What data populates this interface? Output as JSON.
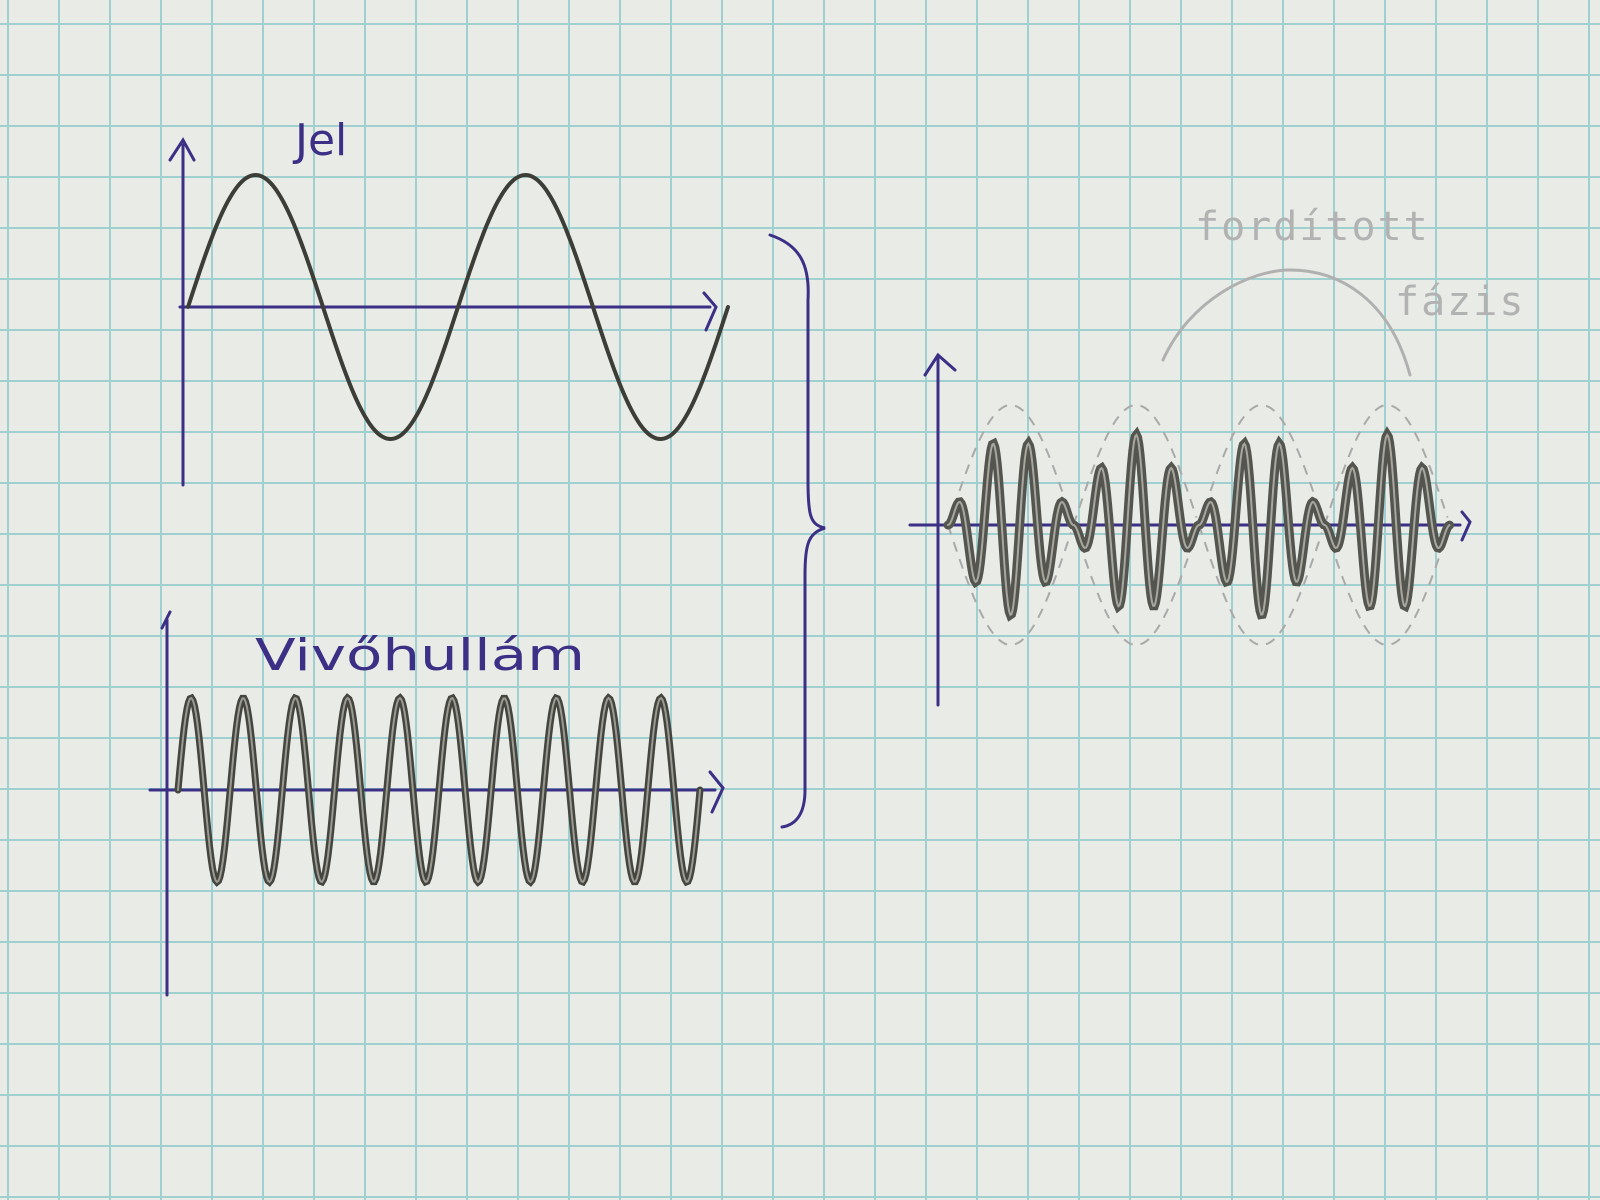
{
  "paper": {
    "background": "#e9ebe6",
    "grid_color": "#9fd0cf"
  },
  "inks": {
    "pen": "#3b2f86",
    "pencil": "#4b4b45",
    "pencil_faint": "#a9a9a9"
  },
  "labels": {
    "signal": "Jel",
    "carrier": "Vivőhullám",
    "inverted_phase_line1": "fordított",
    "inverted_phase_line2": "fázis"
  },
  "waves": {
    "signal_cycles": 2,
    "carrier_cycles": 10,
    "modulated_bursts": 4
  }
}
